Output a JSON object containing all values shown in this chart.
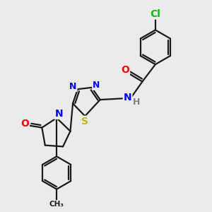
{
  "bg_color": "#ebebeb",
  "bond_color": "#1a1a1a",
  "bond_width": 1.6,
  "atom_colors": {
    "N": "#0000ff",
    "O": "#ff0000",
    "S": "#bbbb00",
    "Cl": "#00bb00",
    "H": "#808080",
    "C": "#1a1a1a"
  },
  "font_size_atom": 10,
  "font_size_small": 8
}
